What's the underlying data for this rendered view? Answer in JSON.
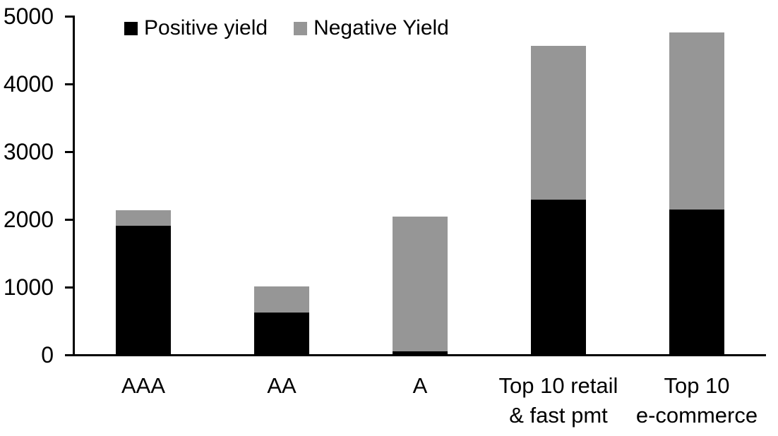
{
  "chart_data": {
    "type": "bar",
    "stacked": true,
    "title": "",
    "xlabel": "",
    "ylabel": "",
    "categories": [
      "AAA",
      "AA",
      "A",
      "Top 10 retail & fast pmt",
      "Top 10 e-commerce"
    ],
    "category_lines": [
      [
        "AAA"
      ],
      [
        "AA"
      ],
      [
        "A"
      ],
      [
        "Top 10 retail",
        "& fast pmt"
      ],
      [
        "Top 10",
        "e-commerce"
      ]
    ],
    "series": [
      {
        "name": "Positive yield",
        "color": "#000000",
        "values": [
          1900,
          610,
          40,
          2280,
          2140
        ]
      },
      {
        "name": "Negative Yield",
        "color": "#969696",
        "values": [
          220,
          390,
          1990,
          2270,
          2610
        ]
      }
    ],
    "totals": [
      2120,
      1000,
      2030,
      4550,
      4750
    ],
    "ylim": [
      0,
      5000
    ],
    "yticks": [
      "0",
      "1000",
      "2000",
      "3000",
      "4000",
      "5000"
    ],
    "ytick_values": [
      0,
      1000,
      2000,
      3000,
      4000,
      5000
    ],
    "grid": false,
    "legend_position": "top",
    "axis_color": "#000000",
    "background_color": "#ffffff"
  }
}
